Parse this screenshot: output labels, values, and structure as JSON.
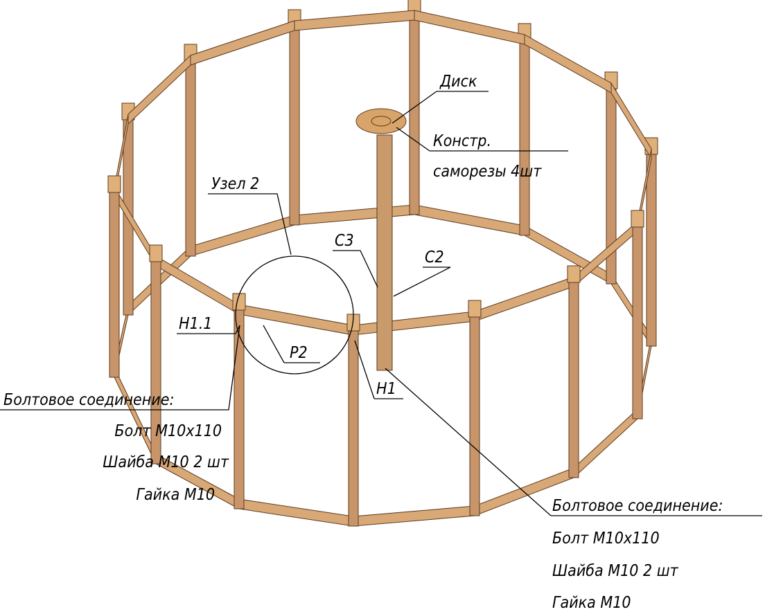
{
  "labels": {
    "disk": "Диск",
    "constr": "Констр.",
    "screws": "саморезы 4шт",
    "node": "Узел 2",
    "c3": "С3",
    "c2": "С2",
    "h11": "Н1.1",
    "p2": "Р2",
    "h1": "Н1"
  },
  "callouts": [
    {
      "title": "Болтовое соединение:",
      "lines": [
        "Болт М10х110",
        "Шайба М10 2 шт",
        "Гайка М10"
      ]
    },
    {
      "title": "Болтовое соединение:",
      "lines": [
        "Болт М10х110",
        "Шайба М10 2 шт",
        "Гайка М10"
      ]
    }
  ]
}
